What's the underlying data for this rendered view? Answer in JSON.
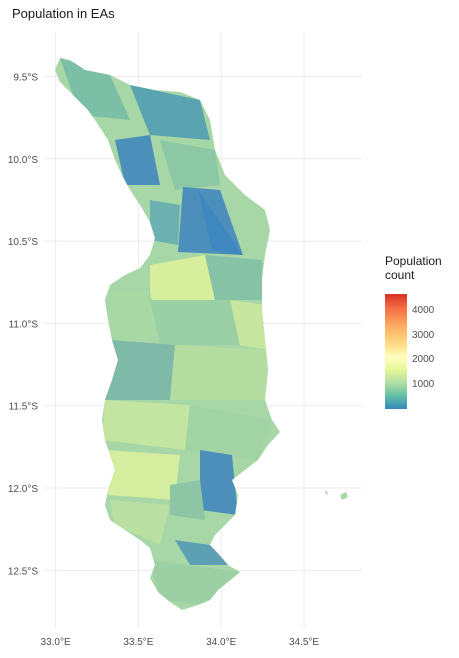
{
  "title": "Population in EAs",
  "chart_data": {
    "type": "choropleth",
    "title": "Population in EAs",
    "x_ticks": [
      33.0,
      33.5,
      34.0,
      34.5
    ],
    "x_tick_labels": [
      "33.0°E",
      "33.5°E",
      "34.0°E",
      "34.5°E"
    ],
    "y_ticks": [
      -9.5,
      -10.0,
      -10.5,
      -11.0,
      -11.5,
      -12.0,
      -12.5
    ],
    "y_tick_labels": [
      "9.5°S",
      "10.0°S",
      "10.5°S",
      "11.0°S",
      "11.5°S",
      "12.0°S",
      "12.5°S"
    ],
    "xlim": [
      32.93,
      34.85
    ],
    "ylim": [
      -12.85,
      -9.23
    ],
    "grid": true,
    "legend": {
      "title": "Population\ncount",
      "position": "right",
      "palette": [
        "#3288bd",
        "#66c2a5",
        "#abdda4",
        "#e6f598",
        "#ffffbf",
        "#fee08b",
        "#fdae61",
        "#f46d43",
        "#d73027"
      ],
      "range": [
        0,
        4700
      ],
      "ticks": [
        1000,
        2000,
        3000,
        4000
      ],
      "tick_labels": [
        "1000",
        "2000",
        "3000",
        "4000"
      ]
    }
  }
}
